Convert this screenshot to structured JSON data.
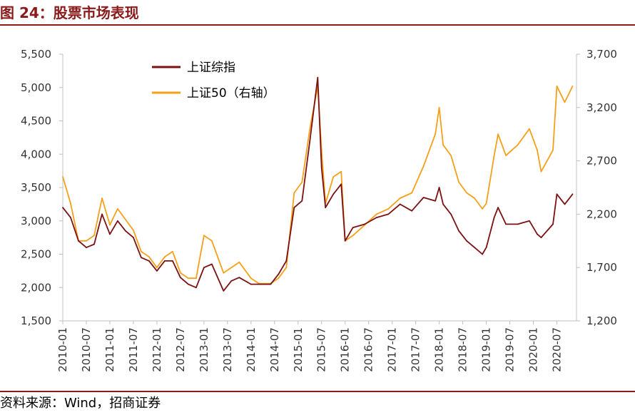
{
  "header": {
    "title": "图 24：股票市场表现"
  },
  "footer": {
    "source": "资料来源：Wind，招商证券"
  },
  "chart_data": {
    "type": "line",
    "x_tick_labels": [
      "2010-01",
      "2010-07",
      "2011-01",
      "2011-07",
      "2012-01",
      "2012-07",
      "2013-01",
      "2013-07",
      "2014-01",
      "2014-07",
      "2015-01",
      "2015-07",
      "2016-01",
      "2016-07",
      "2017-01",
      "2017-07",
      "2018-01",
      "2018-07",
      "2019-01",
      "2019-07",
      "2020-01",
      "2020-07"
    ],
    "y_left": {
      "min": 1500,
      "max": 5500,
      "ticks": [
        "1,500",
        "2,000",
        "2,500",
        "3,000",
        "3,500",
        "4,000",
        "4,500",
        "5,000",
        "5,500"
      ]
    },
    "y_right": {
      "min": 1200,
      "max": 3700,
      "ticks": [
        "1,200",
        "1,700",
        "2,200",
        "2,700",
        "3,200",
        "3,700"
      ]
    },
    "grid": false,
    "legend_position": "top-left",
    "colors": {
      "sh_composite": "#7b1113",
      "sh50": "#f5a01a",
      "axis": "#bfbfbf"
    },
    "series": [
      {
        "name": "上证综指",
        "axis": "left",
        "x": [
          "2010-01",
          "2010-03",
          "2010-05",
          "2010-07",
          "2010-09",
          "2010-11",
          "2011-01",
          "2011-03",
          "2011-05",
          "2011-07",
          "2011-09",
          "2011-11",
          "2012-01",
          "2012-03",
          "2012-05",
          "2012-07",
          "2012-09",
          "2012-11",
          "2013-01",
          "2013-03",
          "2013-06",
          "2013-08",
          "2013-10",
          "2014-01",
          "2014-03",
          "2014-06",
          "2014-08",
          "2014-10",
          "2014-12",
          "2015-02",
          "2015-04",
          "2015-06",
          "2015-07",
          "2015-08",
          "2015-10",
          "2015-12",
          "2016-01",
          "2016-03",
          "2016-06",
          "2016-09",
          "2016-12",
          "2017-03",
          "2017-06",
          "2017-09",
          "2017-12",
          "2018-01",
          "2018-02",
          "2018-04",
          "2018-06",
          "2018-08",
          "2018-10",
          "2018-12",
          "2019-01",
          "2019-03",
          "2019-04",
          "2019-06",
          "2019-09",
          "2019-12",
          "2020-02",
          "2020-03",
          "2020-06",
          "2020-07",
          "2020-09",
          "2020-11"
        ],
        "values": [
          3200,
          3050,
          2700,
          2600,
          2650,
          3100,
          2800,
          3000,
          2850,
          2750,
          2450,
          2400,
          2250,
          2400,
          2400,
          2150,
          2050,
          2000,
          2300,
          2350,
          1950,
          2100,
          2150,
          2050,
          2050,
          2050,
          2200,
          2400,
          3200,
          3300,
          4200,
          5150,
          3800,
          3200,
          3400,
          3550,
          2700,
          2900,
          2950,
          3050,
          3100,
          3250,
          3150,
          3350,
          3300,
          3500,
          3250,
          3100,
          2850,
          2700,
          2600,
          2500,
          2600,
          3050,
          3200,
          2950,
          2950,
          3000,
          2800,
          2750,
          2950,
          3400,
          3250,
          3400
        ]
      },
      {
        "name": "上证50（右轴）",
        "axis": "right",
        "x": [
          "2010-01",
          "2010-03",
          "2010-05",
          "2010-07",
          "2010-09",
          "2010-11",
          "2011-01",
          "2011-03",
          "2011-05",
          "2011-07",
          "2011-09",
          "2011-11",
          "2012-01",
          "2012-03",
          "2012-05",
          "2012-07",
          "2012-09",
          "2012-11",
          "2013-01",
          "2013-03",
          "2013-06",
          "2013-08",
          "2013-10",
          "2014-01",
          "2014-03",
          "2014-06",
          "2014-08",
          "2014-10",
          "2014-12",
          "2015-02",
          "2015-04",
          "2015-06",
          "2015-07",
          "2015-08",
          "2015-10",
          "2015-12",
          "2016-01",
          "2016-03",
          "2016-06",
          "2016-09",
          "2016-12",
          "2017-03",
          "2017-06",
          "2017-09",
          "2017-12",
          "2018-01",
          "2018-02",
          "2018-04",
          "2018-06",
          "2018-08",
          "2018-10",
          "2018-12",
          "2019-01",
          "2019-03",
          "2019-04",
          "2019-06",
          "2019-09",
          "2019-12",
          "2020-02",
          "2020-03",
          "2020-06",
          "2020-07",
          "2020-09",
          "2020-11"
        ],
        "values": [
          2550,
          2300,
          1950,
          1950,
          2000,
          2350,
          2100,
          2250,
          2150,
          2050,
          1850,
          1800,
          1700,
          1800,
          1850,
          1650,
          1600,
          1600,
          2000,
          1950,
          1650,
          1700,
          1750,
          1600,
          1550,
          1550,
          1600,
          1700,
          2400,
          2500,
          3000,
          3400,
          2800,
          2300,
          2550,
          2600,
          1950,
          2000,
          2100,
          2200,
          2250,
          2350,
          2400,
          2650,
          2950,
          3200,
          2850,
          2750,
          2500,
          2400,
          2350,
          2250,
          2300,
          2750,
          2950,
          2750,
          2850,
          3000,
          2800,
          2600,
          2800,
          3400,
          3250,
          3400
        ]
      }
    ]
  }
}
